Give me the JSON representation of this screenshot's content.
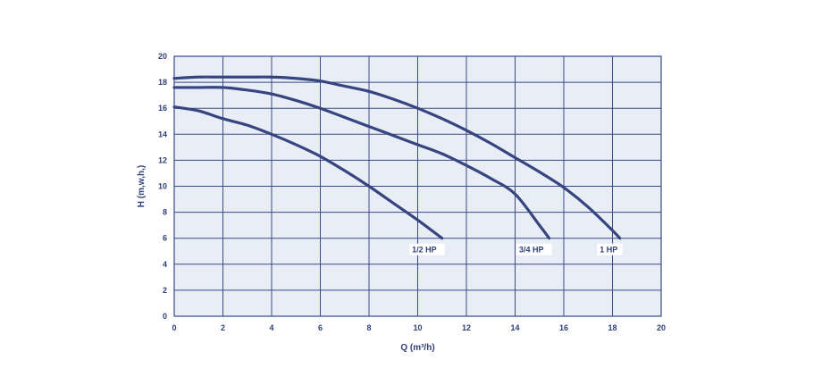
{
  "chart_data": {
    "type": "line",
    "title": "",
    "xlabel": "Q (m³/h)",
    "ylabel": "H (m,w,h,)",
    "xlim": [
      0,
      20
    ],
    "ylim": [
      0,
      20
    ],
    "x_ticks": [
      "0",
      "2",
      "4",
      "6",
      "8",
      "10",
      "12",
      "14",
      "16",
      "18",
      "20"
    ],
    "y_ticks": [
      "0",
      "2",
      "4",
      "6",
      "8",
      "10",
      "12",
      "14",
      "16",
      "18",
      "20"
    ],
    "grid": true,
    "legend": "inline labels at curve ends",
    "colors": {
      "background": "#e8edf6",
      "grid": "#3a4a86",
      "curve": "#36457f",
      "text": "#2f3f78",
      "label_box": "#ffffff"
    },
    "series": [
      {
        "name": "1/2 HP",
        "x": [
          0,
          1,
          2,
          3,
          4,
          5,
          6,
          7,
          8,
          9,
          10,
          11
        ],
        "y": [
          16.1,
          15.8,
          15.2,
          14.7,
          14.0,
          13.2,
          12.3,
          11.2,
          10.0,
          8.7,
          7.4,
          6.0
        ]
      },
      {
        "name": "3/4 HP",
        "x": [
          0,
          1,
          2,
          3,
          4,
          5,
          6,
          7,
          8,
          9,
          10,
          11,
          12,
          13,
          14,
          15,
          15.4
        ],
        "y": [
          17.6,
          17.6,
          17.6,
          17.4,
          17.1,
          16.6,
          16.0,
          15.3,
          14.6,
          13.9,
          13.2,
          12.5,
          11.6,
          10.6,
          9.4,
          7.0,
          6.0
        ]
      },
      {
        "name": "1 HP",
        "x": [
          0,
          1,
          2,
          3,
          4,
          5,
          6,
          7,
          8,
          9,
          10,
          11,
          12,
          13,
          14,
          15,
          16,
          17,
          18,
          18.3
        ],
        "y": [
          18.3,
          18.4,
          18.4,
          18.4,
          18.4,
          18.3,
          18.1,
          17.7,
          17.3,
          16.7,
          16.0,
          15.2,
          14.3,
          13.3,
          12.2,
          11.1,
          9.9,
          8.4,
          6.6,
          6.0
        ]
      }
    ]
  }
}
